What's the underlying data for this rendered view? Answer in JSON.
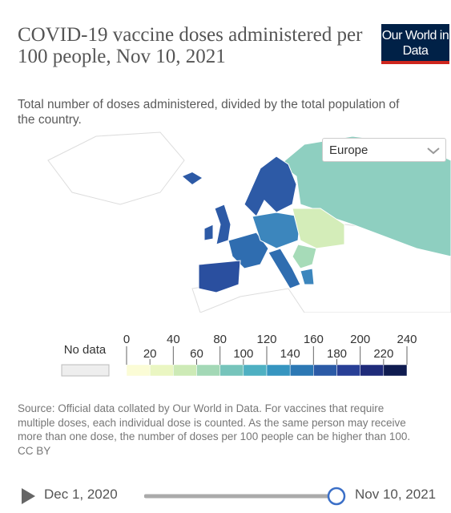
{
  "header": {
    "title": "COVID-19 vaccine doses administered per 100 people, Nov 10, 2021",
    "subtitle": "Total number of doses administered, divided by the total population of the country.",
    "logo": "Our World in Data"
  },
  "map": {
    "region": "Europe"
  },
  "legend": {
    "no_data": "No data",
    "ticks": [
      0,
      20,
      40,
      60,
      80,
      100,
      120,
      140,
      160,
      180,
      200,
      220,
      240
    ],
    "colors": [
      "#fbfcd6",
      "#eaf6c2",
      "#cdeab6",
      "#a3d8b6",
      "#76c4bb",
      "#4eb0c2",
      "#3695c0",
      "#2c78b4",
      "#2b5aa6",
      "#283f96",
      "#1f2b7a",
      "#0f1b50"
    ]
  },
  "footer": {
    "source": "Source: Official data collated by Our World in Data. For vaccines that require multiple doses, each individual dose is counted. As the same person may receive more than one dose, the number of doses per 100 people can be higher than 100.",
    "license": "CC BY"
  },
  "timeline": {
    "start": "Dec 1, 2020",
    "end": "Nov 10, 2021"
  }
}
